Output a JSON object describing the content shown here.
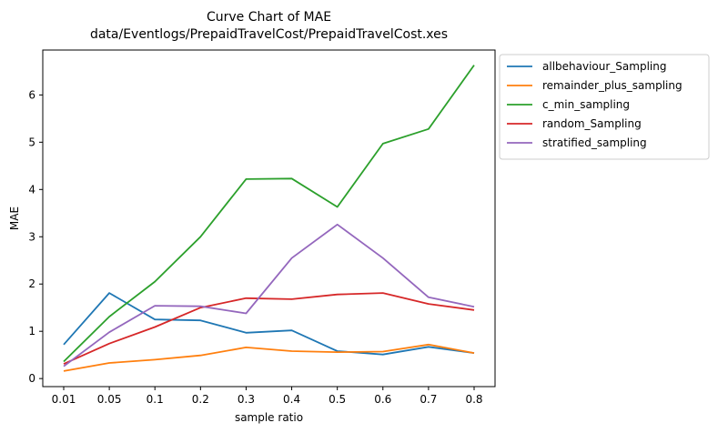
{
  "chart_data": {
    "type": "line",
    "title_lines": [
      "Curve Chart of MAE",
      "data/Eventlogs/PrepaidTravelCost/PrepaidTravelCost.xes"
    ],
    "xlabel": "sample ratio",
    "ylabel": "MAE",
    "categories": [
      "0.01",
      "0.05",
      "0.1",
      "0.2",
      "0.3",
      "0.4",
      "0.5",
      "0.6",
      "0.7",
      "0.8"
    ],
    "yticks": [
      0,
      1,
      2,
      3,
      4,
      5,
      6
    ],
    "ylim": [
      -0.17,
      6.95
    ],
    "legend_position": "outside-top-right",
    "series": [
      {
        "name": "allbehaviour_Sampling",
        "color": "#1f77b4",
        "values": [
          0.72,
          1.81,
          1.25,
          1.23,
          0.97,
          1.02,
          0.58,
          0.51,
          0.67,
          0.54
        ]
      },
      {
        "name": "remainder_plus_sampling",
        "color": "#ff7f0e",
        "values": [
          0.16,
          0.33,
          0.4,
          0.49,
          0.66,
          0.58,
          0.56,
          0.57,
          0.72,
          0.54
        ]
      },
      {
        "name": "c_min_sampling",
        "color": "#2ca02c",
        "values": [
          0.36,
          1.31,
          2.05,
          3.0,
          4.22,
          4.23,
          3.63,
          4.97,
          5.28,
          6.63
        ]
      },
      {
        "name": "random_Sampling",
        "color": "#d62728",
        "values": [
          0.31,
          0.74,
          1.09,
          1.5,
          1.7,
          1.68,
          1.78,
          1.81,
          1.58,
          1.45
        ]
      },
      {
        "name": "stratified_sampling",
        "color": "#9467bd",
        "values": [
          0.26,
          0.98,
          1.54,
          1.53,
          1.38,
          2.55,
          3.26,
          2.55,
          1.72,
          1.52
        ]
      }
    ]
  }
}
